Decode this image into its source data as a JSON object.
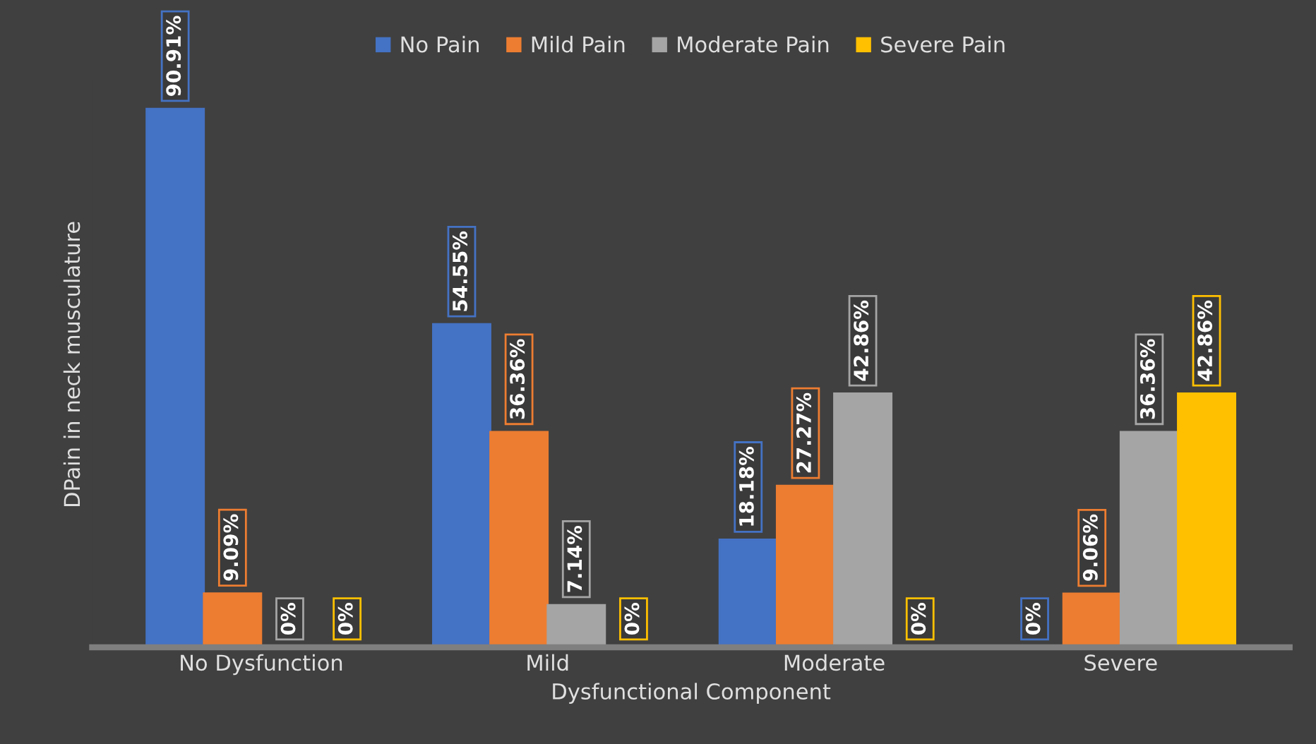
{
  "chart_data": {
    "type": "bar",
    "xlabel": "Dysfunctional Component",
    "ylabel": "DPain in neck musculature",
    "categories": [
      "No Dysfunction",
      "Mild",
      "Moderate",
      "Severe"
    ],
    "series": [
      {
        "name": "No Pain",
        "color": "#4472c4",
        "values": [
          90.91,
          54.55,
          18.18,
          0
        ],
        "value_labels": [
          "90.91%",
          "54.55%",
          "18.18%",
          "0%"
        ]
      },
      {
        "name": "Mild Pain",
        "color": "#ed7d31",
        "values": [
          9.09,
          36.36,
          27.27,
          9.06
        ],
        "value_labels": [
          "9.09%",
          "36.36%",
          "27.27%",
          "9.06%"
        ]
      },
      {
        "name": "Moderate Pain",
        "color": "#a5a5a5",
        "values": [
          0,
          7.14,
          42.86,
          36.36
        ],
        "value_labels": [
          "0%",
          "7.14%",
          "42.86%",
          "36.36%"
        ]
      },
      {
        "name": "Severe Pain",
        "color": "#ffc000",
        "values": [
          0,
          0,
          0,
          42.86
        ],
        "value_labels": [
          "0%",
          "0%",
          "0%",
          "42.86%"
        ]
      }
    ],
    "legend": "top",
    "tick_labels": "x",
    "grid": false
  }
}
